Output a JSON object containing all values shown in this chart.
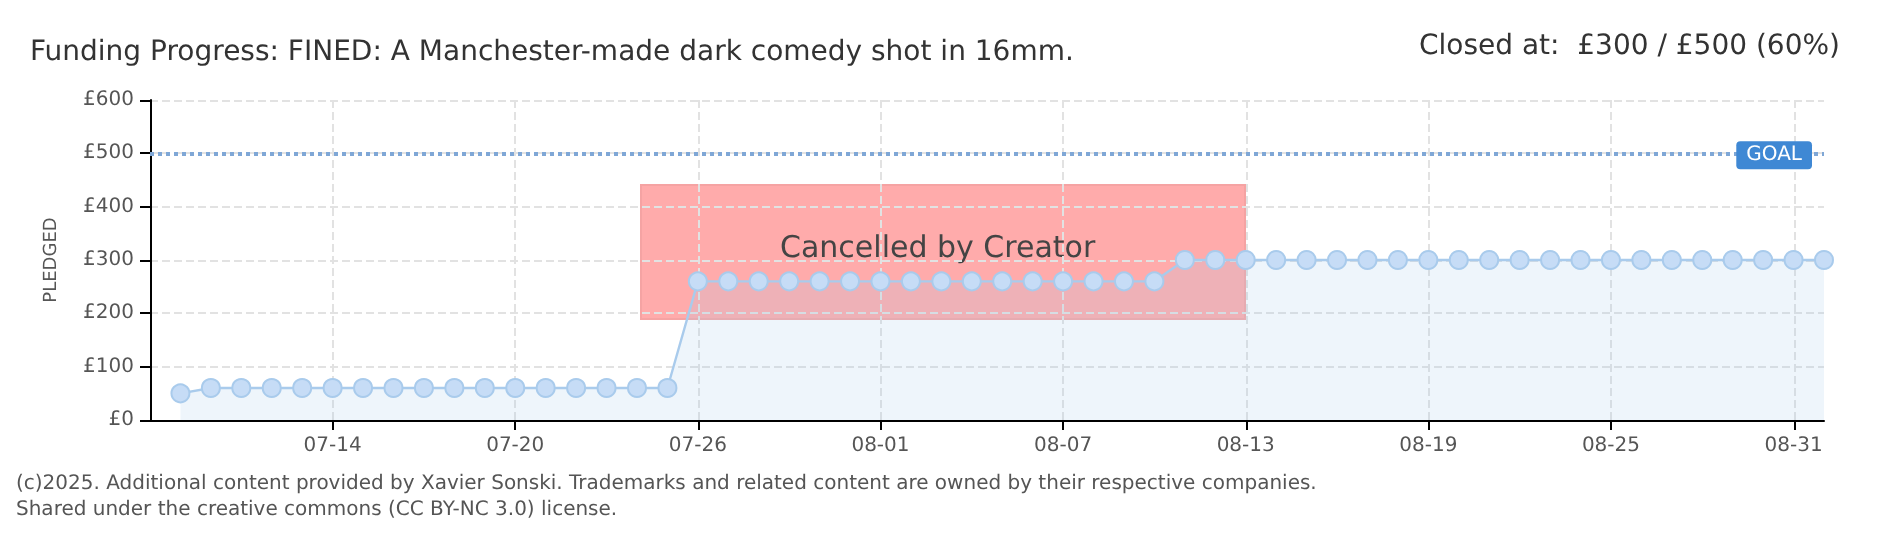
{
  "chart_data": {
    "type": "area",
    "title": "Funding Progress: FINED: A Manchester-made dark comedy shot in 16mm.",
    "subtitle": "Closed at:  £300 / £500 (60%)",
    "ylabel": "PLEDGED",
    "x": [
      "--07-09",
      "--07-10",
      "--07-11",
      "--07-12",
      "--07-13",
      "--07-14",
      "--07-15",
      "--07-16",
      "--07-17",
      "--07-18",
      "--07-19",
      "--07-20",
      "--07-21",
      "--07-22",
      "--07-23",
      "--07-24",
      "--07-25",
      "--07-26",
      "--07-27",
      "--07-28",
      "--07-29",
      "--07-30",
      "--07-31",
      "--08-01",
      "--08-02",
      "--08-03",
      "--08-04",
      "--08-05",
      "--08-06",
      "--08-07",
      "--08-08",
      "--08-09",
      "--08-10",
      "--08-11",
      "--08-12",
      "--08-13",
      "--08-14",
      "--08-15",
      "--08-16",
      "--08-17",
      "--08-18",
      "--08-19",
      "--08-20",
      "--08-21",
      "--08-22",
      "--08-23",
      "--08-24",
      "--08-25",
      "--08-26",
      "--08-27",
      "--08-28",
      "--08-29",
      "--08-30",
      "--08-31",
      "--09-01"
    ],
    "series": [
      {
        "color": "#a9cbec",
        "values": [
          50,
          60,
          60,
          60,
          60,
          60,
          60,
          60,
          60,
          60,
          60,
          60,
          60,
          60,
          60,
          60,
          60,
          260,
          260,
          260,
          260,
          260,
          260,
          260,
          260,
          260,
          260,
          260,
          260,
          260,
          260,
          260,
          260,
          300,
          300,
          300,
          300,
          300,
          300,
          300,
          300,
          300,
          300,
          300,
          300,
          300,
          300,
          300,
          300,
          300,
          300,
          300,
          300,
          300,
          300
        ]
      }
    ],
    "xlim": [
      "--07-08",
      "--09-01"
    ],
    "xticks": [
      {
        "value": "--07-14",
        "label": "07-14"
      },
      {
        "value": "--07-20",
        "label": "07-20"
      },
      {
        "value": "--07-26",
        "label": "07-26"
      },
      {
        "value": "--08-01",
        "label": "08-01"
      },
      {
        "value": "--08-07",
        "label": "08-07"
      },
      {
        "value": "--08-13",
        "label": "08-13"
      },
      {
        "value": "--08-19",
        "label": "08-19"
      },
      {
        "value": "--08-25",
        "label": "08-25"
      },
      {
        "value": "--08-31",
        "label": "08-31"
      }
    ],
    "ylim": [
      0,
      600
    ],
    "yticks": [
      {
        "value": 0,
        "label": "£0"
      },
      {
        "value": 100,
        "label": "£100"
      },
      {
        "value": 200,
        "label": "£200"
      },
      {
        "value": 300,
        "label": "£300"
      },
      {
        "value": 400,
        "label": "£400"
      },
      {
        "value": 500,
        "label": "£500"
      },
      {
        "value": 600,
        "label": "£600"
      }
    ],
    "ref_lines": [
      {
        "axis": "y",
        "value": 500,
        "label": "GOAL",
        "color": "#7fa7d6",
        "line_style": "dotted"
      }
    ],
    "annotations": [
      "Cancelled by Creator",
      "(c)2025. Additional content provided by Xavier Sonski. Trademarks and related content are owned by their respective companies.",
      "Shared under the creative commons (CC BY-NC 3.0) license."
    ],
    "grid": true,
    "marker": "circle",
    "line_style": "solid"
  }
}
